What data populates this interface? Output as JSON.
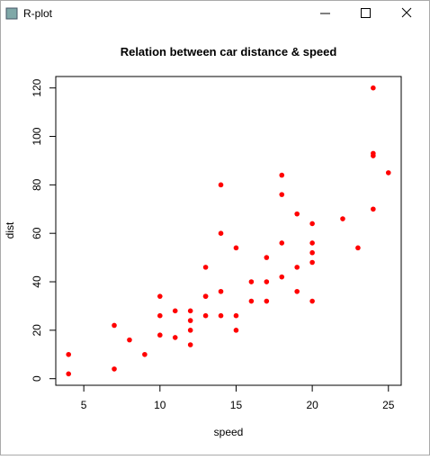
{
  "window": {
    "title": "R-plot"
  },
  "chart_data": {
    "type": "scatter",
    "title": "Relation between car distance & speed",
    "x_label": "speed",
    "y_label": "dist",
    "series": [
      {
        "color": "#ff0000",
        "x": [
          4,
          4,
          7,
          7,
          8,
          9,
          10,
          10,
          10,
          11,
          11,
          12,
          12,
          12,
          12,
          13,
          13,
          13,
          13,
          14,
          14,
          14,
          14,
          15,
          15,
          15,
          16,
          16,
          17,
          17,
          17,
          18,
          18,
          18,
          18,
          19,
          19,
          19,
          20,
          20,
          20,
          20,
          20,
          22,
          23,
          24,
          24,
          24,
          24,
          25
        ],
        "values": [
          2,
          10,
          4,
          22,
          16,
          10,
          18,
          26,
          34,
          17,
          28,
          14,
          20,
          24,
          28,
          26,
          34,
          34,
          46,
          26,
          36,
          60,
          80,
          20,
          26,
          54,
          32,
          40,
          32,
          40,
          50,
          42,
          56,
          76,
          84,
          36,
          46,
          68,
          32,
          48,
          52,
          56,
          64,
          66,
          54,
          70,
          92,
          93,
          120,
          85
        ]
      }
    ],
    "xlim": [
      3.16,
      25.84
    ],
    "xticks": [
      5,
      10,
      15,
      20,
      25
    ],
    "ylim": [
      -2.72,
      124.72
    ],
    "yticks": [
      0,
      20,
      40,
      60,
      80,
      100,
      120
    ]
  }
}
